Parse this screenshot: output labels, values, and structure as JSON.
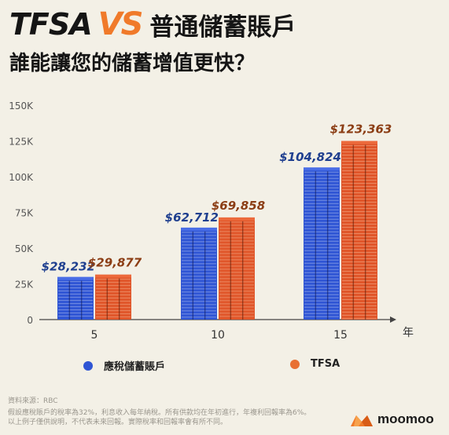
{
  "header": {
    "title_left": "TFSA",
    "title_vs": "VS",
    "title_right": "普通儲蓄賬戶",
    "subtitle": "誰能讓您的儲蓄增值更快？"
  },
  "chart_data": {
    "type": "bar",
    "categories": [
      "5",
      "10",
      "15"
    ],
    "x_unit": "年",
    "series": [
      {
        "name": "應稅儲蓄賬戶",
        "values": [
          28232,
          62712,
          104824
        ],
        "labels": [
          "$28,232",
          "$62,712",
          "$104,824"
        ],
        "color": "#2f55d4",
        "label_color": "#1f3f8f"
      },
      {
        "name": "TFSA",
        "values": [
          29877,
          69858,
          123363
        ],
        "labels": [
          "$29,877",
          "$69,858",
          "$123,363"
        ],
        "color": "#e0562a",
        "label_color": "#8b3d14"
      }
    ],
    "y_ticks": [
      0,
      25000,
      50000,
      75000,
      100000,
      125000,
      150000
    ],
    "y_tick_labels": [
      "0",
      "25K",
      "50K",
      "75K",
      "100K",
      "125K",
      "150K"
    ],
    "ylim": [
      0,
      150000
    ],
    "grid": false,
    "legend_position": "bottom"
  },
  "legend": {
    "items": [
      {
        "label": "應稅儲蓄賬戶",
        "color": "#2f55d4"
      },
      {
        "label": "TFSA",
        "color": "#e87033"
      }
    ]
  },
  "footer": {
    "source": "資料來源：RBC",
    "note1": "假設應稅賬戶的稅率為32%，利息收入每年納稅。所有供款均在年初進行，年複利回報率為6%。",
    "note2": "以上例子僅供說明，不代表未來回報。實際稅率和回報率會有所不同。",
    "brand": "moomoo"
  }
}
